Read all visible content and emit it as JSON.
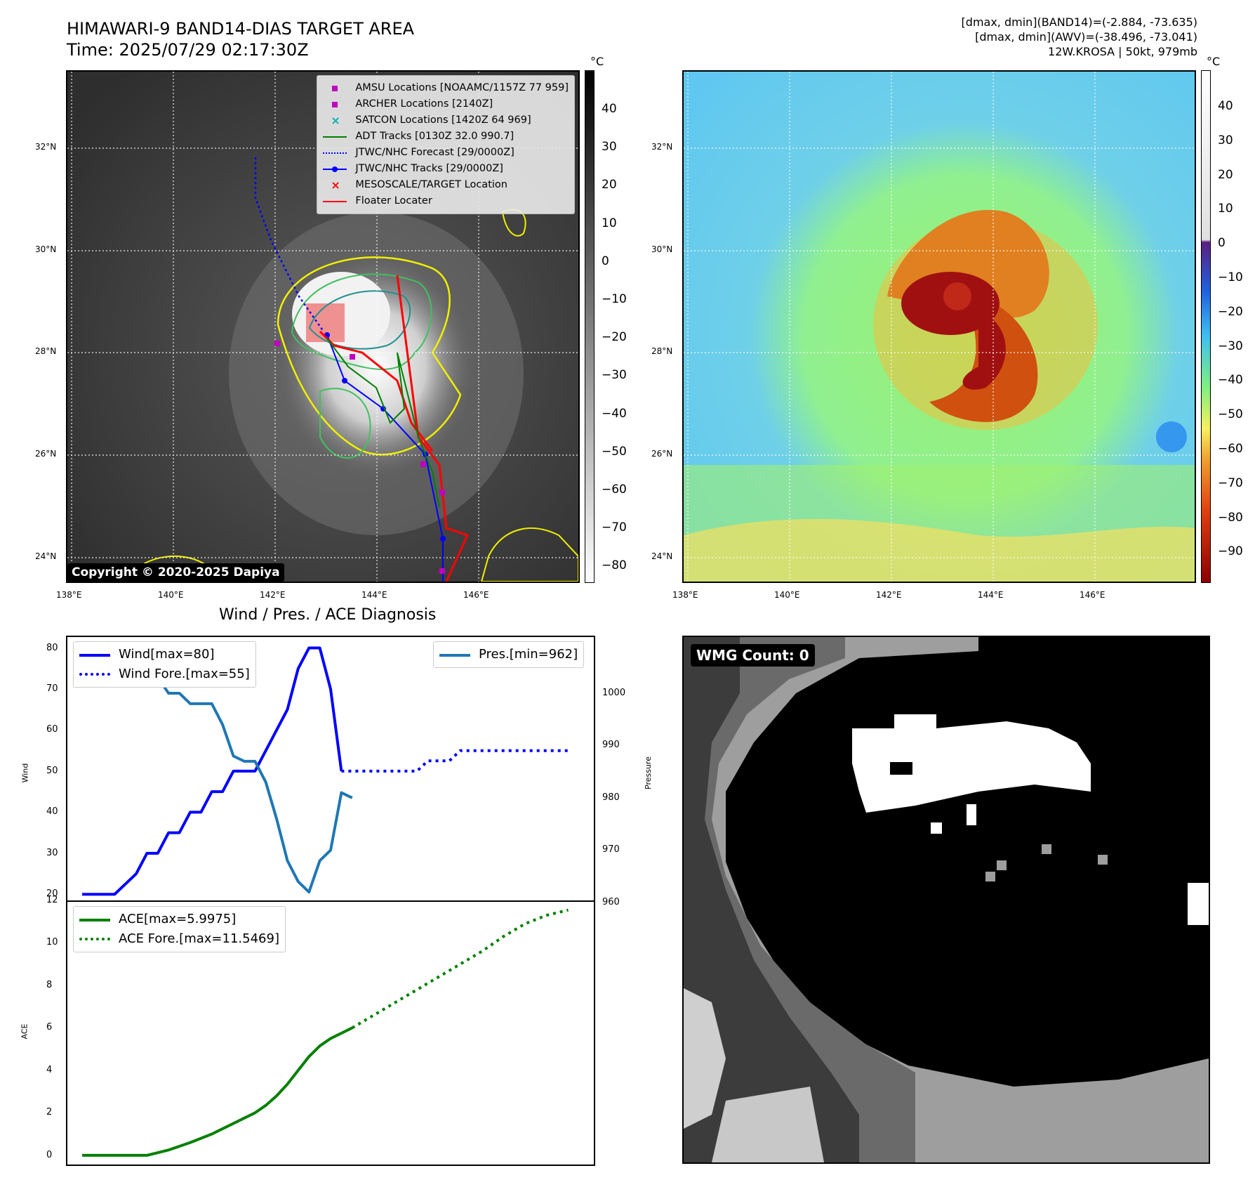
{
  "header": {
    "title_line1": "HIMAWARI-9 BAND14-DIAS TARGET AREA",
    "title_line2": "Time: 2025/07/29 02:17:30Z",
    "info_line1": "[dmax, dmin](BAND14)=(-2.884, -73.635)",
    "info_line2": "[dmax, dmin](AWV)=(-38.496, -73.041)",
    "info_line3": "12W.KROSA | 50kt, 979mb"
  },
  "map_axes": {
    "lon_ticks": [
      "138°E",
      "140°E",
      "142°E",
      "144°E",
      "146°E"
    ],
    "lat_ticks": [
      "32°N",
      "30°N",
      "28°N",
      "26°N",
      "24°N"
    ]
  },
  "ir_panel": {
    "copyright": "Copyright © 2020-2025 Dapiya",
    "legend": [
      {
        "label": "AMSU Locations [NOAAMC/1157Z 77 959]",
        "color": "#c000c0",
        "symbol": "square"
      },
      {
        "label": "ARCHER Locations [2140Z]",
        "color": "#c000c0",
        "symbol": "square"
      },
      {
        "label": "SATCON Locations [1420Z 64 969]",
        "color": "#00b0b0",
        "symbol": "x"
      },
      {
        "label": "ADT Tracks [0130Z 32.0 990.7]",
        "color": "#008000",
        "symbol": "line"
      },
      {
        "label": "JTWC/NHC Forecast [29/0000Z]",
        "color": "#0000ff",
        "symbol": "dotted"
      },
      {
        "label": "JTWC/NHC Tracks [29/0000Z]",
        "color": "#0000ff",
        "symbol": "line-dot"
      },
      {
        "label": "MESOSCALE/TARGET Location",
        "color": "#ff0000",
        "symbol": "x"
      },
      {
        "label": "Floater Locater",
        "color": "#ff0000",
        "symbol": "line"
      }
    ],
    "colorbar_unit": "°C",
    "colorbar_ticks": [
      "40",
      "30",
      "20",
      "10",
      "0",
      "−10",
      "−20",
      "−30",
      "−40",
      "−50",
      "−60",
      "−70",
      "−80"
    ]
  },
  "awv_panel": {
    "colorbar_unit": "°C",
    "colorbar_ticks": [
      "40",
      "30",
      "20",
      "10",
      "0",
      "−10",
      "−20",
      "−30",
      "−40",
      "−50",
      "−60",
      "−70",
      "−80",
      "−90"
    ]
  },
  "wmg_panel": {
    "label": "WMG Count: 0"
  },
  "chart_data": [
    {
      "type": "line",
      "title": "Wind / Pres. / ACE Diagnosis",
      "ylabel": "Wind",
      "ylabel_right": "Pressure",
      "ylim": [
        18,
        83
      ],
      "ylim_right": [
        960,
        1011
      ],
      "yticks": [
        "20",
        "30",
        "40",
        "50",
        "60",
        "70",
        "80"
      ],
      "yticks_right": [
        "960",
        "970",
        "980",
        "990",
        "1000"
      ],
      "series": [
        {
          "name": "Wind[max=80]",
          "color": "#0000ff",
          "style": "solid",
          "x": [
            0,
            3,
            5,
            6,
            7,
            8,
            9,
            10,
            11,
            12,
            13,
            14,
            15,
            16,
            17,
            18,
            19,
            20,
            21,
            22,
            23,
            24
          ],
          "values": [
            20,
            20,
            25,
            30,
            30,
            35,
            35,
            40,
            40,
            45,
            45,
            50,
            50,
            50,
            55,
            60,
            65,
            75,
            80,
            80,
            70,
            50
          ]
        },
        {
          "name": "Wind Fore.[max=55]",
          "color": "#0000ff",
          "style": "dotted",
          "x": [
            24,
            27,
            28,
            30,
            31,
            32,
            33,
            34,
            35,
            36,
            37,
            38,
            39,
            40,
            41,
            42,
            43,
            44,
            45
          ],
          "values": [
            50,
            50,
            50,
            50,
            50,
            52.5,
            52.5,
            52.5,
            55,
            55,
            55,
            55,
            55,
            55,
            55,
            55,
            55,
            55,
            55
          ]
        },
        {
          "name": "Pres.[min=962]",
          "color": "#1f77b4",
          "style": "solid",
          "axis": "right",
          "x": [
            0,
            1,
            2,
            3,
            4,
            5,
            6,
            7,
            8,
            9,
            10,
            11,
            12,
            13,
            14,
            15,
            16,
            17,
            18,
            19,
            20,
            21,
            22,
            23,
            24,
            25
          ],
          "values": [
            1008,
            1008,
            1008,
            1008,
            1004,
            1004,
            1003,
            1003,
            1000,
            1000,
            998,
            998,
            998,
            994,
            988,
            987,
            987,
            983,
            976,
            968,
            964,
            962,
            968,
            970,
            981,
            980
          ]
        }
      ]
    },
    {
      "type": "line",
      "ylabel": "ACE",
      "ylim": [
        -0.5,
        12
      ],
      "yticks": [
        "0",
        "2",
        "4",
        "6",
        "8",
        "10",
        "12"
      ],
      "series": [
        {
          "name": "ACE[max=5.9975]",
          "color": "#008000",
          "style": "solid",
          "x": [
            0,
            2,
            4,
            5,
            6,
            8,
            10,
            12,
            13,
            14,
            15,
            16,
            17,
            18,
            19,
            20,
            21,
            22,
            23,
            24,
            25
          ],
          "values": [
            0,
            0,
            0,
            0,
            0,
            0.25,
            0.6,
            1.0,
            1.25,
            1.5,
            1.75,
            2.0,
            2.35,
            2.8,
            3.35,
            4.0,
            4.65,
            5.15,
            5.5,
            5.75,
            6.0
          ]
        },
        {
          "name": "ACE Fore.[max=11.5469]",
          "color": "#008000",
          "style": "dotted",
          "x": [
            25,
            27,
            29,
            31,
            33,
            35,
            37,
            39,
            41,
            43,
            45
          ],
          "values": [
            6.0,
            6.6,
            7.2,
            7.8,
            8.4,
            9.0,
            9.6,
            10.3,
            10.9,
            11.3,
            11.55
          ]
        }
      ]
    }
  ]
}
